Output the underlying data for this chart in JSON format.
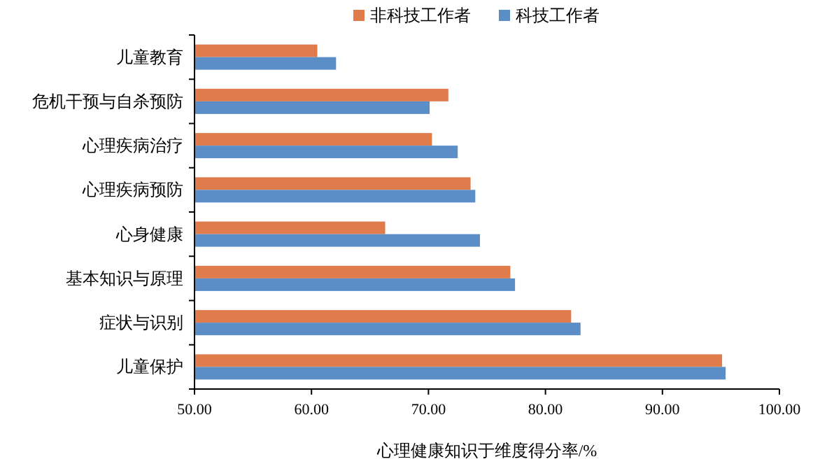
{
  "chart_data": {
    "type": "bar",
    "orientation": "horizontal",
    "categories": [
      "儿童教育",
      "危机干预与自杀预防",
      "心理疾病治疗",
      "心理疾病预防",
      "心身健康",
      "基本知识与原理",
      "症状与识别",
      "儿童保护"
    ],
    "series": [
      {
        "name": "非科技工作者",
        "color": "#e07b4c",
        "values": [
          60.5,
          71.7,
          70.3,
          73.6,
          66.3,
          77.0,
          82.2,
          95.1
        ]
      },
      {
        "name": "科技工作者",
        "color": "#5b8ec6",
        "values": [
          62.1,
          70.1,
          72.5,
          74.0,
          74.4,
          77.4,
          83.0,
          95.4
        ]
      }
    ],
    "xlim": [
      50,
      100
    ],
    "xticks": [
      {
        "value": 50,
        "label": "50.00"
      },
      {
        "value": 60,
        "label": "60.00"
      },
      {
        "value": 70,
        "label": "70.00"
      },
      {
        "value": 80,
        "label": "80.00"
      },
      {
        "value": 90,
        "label": "90.00"
      },
      {
        "value": 100,
        "label": "100.00"
      }
    ],
    "xlabel": "心理健康知识于维度得分率/%",
    "legend": "top"
  }
}
